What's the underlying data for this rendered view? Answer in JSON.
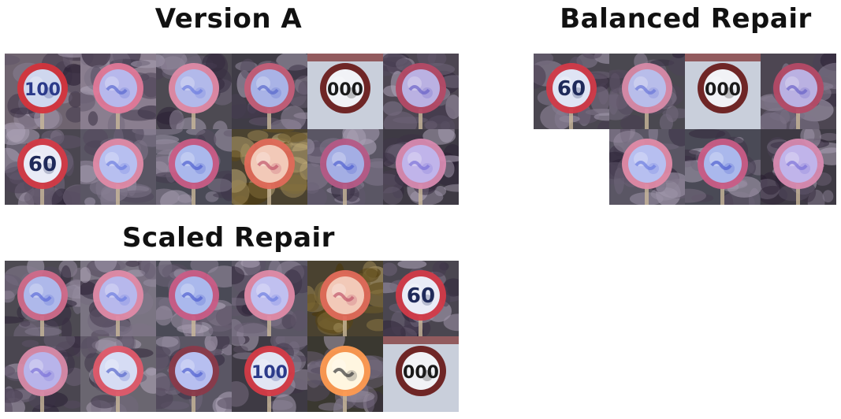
{
  "panels": [
    {
      "title": "Version A",
      "tiles": [
        {
          "bg": "noise",
          "bgColor": "#6f6470",
          "rim": "#d4343c",
          "inner": "#cfd7ee",
          "text": "100",
          "textColor": "#2b3a8a"
        },
        {
          "bg": "noise",
          "bgColor": "#8a7e8f",
          "rim": "#e07898",
          "inner": "#b7b8ec",
          "text": "",
          "textColor": "#5a6ad0"
        },
        {
          "bg": "noise",
          "bgColor": "#4d4a52",
          "rim": "#e08aa6",
          "inner": "#b2b9ea",
          "text": "",
          "textColor": "#6c7de0"
        },
        {
          "bg": "noise",
          "bgColor": "#3f3c46",
          "rim": "#c45e78",
          "inner": "#a9b3e6",
          "text": "",
          "textColor": "#5868cc"
        },
        {
          "bg": "light",
          "bgColor": "#c9cfdb",
          "rim": "#6a1c1c",
          "inner": "#f1f2f6",
          "text": "000",
          "textColor": "#1a1a1a"
        },
        {
          "bg": "noise",
          "bgColor": "#4d4652",
          "rim": "#b44a66",
          "inner": "#bab1e2",
          "text": "",
          "textColor": "#6a62c8"
        },
        {
          "bg": "noise",
          "bgColor": "#4a4650",
          "rim": "#d43a46",
          "inner": "#e9ebf6",
          "text": "60",
          "textColor": "#1f2a5a"
        },
        {
          "bg": "noise",
          "bgColor": "#5a5664",
          "rim": "#e08aa6",
          "inner": "#b7bff0",
          "text": "",
          "textColor": "#6c7de0"
        },
        {
          "bg": "noise",
          "bgColor": "#4a4a56",
          "rim": "#c95c86",
          "inner": "#aab8ec",
          "text": "",
          "textColor": "#4e60d0"
        },
        {
          "bg": "olive",
          "bgColor": "#4a4230",
          "rim": "#e06a5a",
          "inner": "#f2c9b8",
          "text": "",
          "textColor": "#c0556a"
        },
        {
          "bg": "noise",
          "bgColor": "#5a5664",
          "rim": "#b55a86",
          "inner": "#a4aee4",
          "text": "",
          "textColor": "#4e60d0"
        },
        {
          "bg": "noise",
          "bgColor": "#3e3a44",
          "rim": "#d88ab0",
          "inner": "#c0b4ea",
          "text": "",
          "textColor": "#7c72d8"
        }
      ]
    },
    {
      "title": "Balanced Repair",
      "tiles": [
        {
          "bg": "noise",
          "bgColor": "#4a4650",
          "rim": "#d23a48",
          "inner": "#dfe4f4",
          "text": "60",
          "textColor": "#1f2a5a"
        },
        {
          "bg": "noise",
          "bgColor": "#4a4850",
          "rim": "#d88aa8",
          "inner": "#b8bdea",
          "text": "",
          "textColor": "#6a76d8"
        },
        {
          "bg": "light",
          "bgColor": "#c9cfdb",
          "rim": "#6a1c1c",
          "inner": "#f1f2f6",
          "text": "000",
          "textColor": "#1a1a1a"
        },
        {
          "bg": "noise",
          "bgColor": "#4d4652",
          "rim": "#b44a66",
          "inner": "#bab1e2",
          "text": "",
          "textColor": "#6a62c8"
        },
        null,
        {
          "bg": "noise",
          "bgColor": "#5a5664",
          "rim": "#e08aa6",
          "inner": "#b7bff0",
          "text": "",
          "textColor": "#6c7de0"
        },
        {
          "bg": "noise",
          "bgColor": "#4a4a56",
          "rim": "#c95c86",
          "inner": "#aab8ec",
          "text": "",
          "textColor": "#4e60d0"
        },
        {
          "bg": "noise",
          "bgColor": "#3e3a44",
          "rim": "#d88ab0",
          "inner": "#c0b4ea",
          "text": "",
          "textColor": "#7c72d8"
        }
      ]
    },
    {
      "title": "Scaled Repair",
      "tiles": [
        {
          "bg": "noise",
          "bgColor": "#4d4a52",
          "rim": "#d06a8a",
          "inner": "#aeb8ea",
          "text": "",
          "textColor": "#5c6cd8"
        },
        {
          "bg": "noise",
          "bgColor": "#7a7482",
          "rim": "#e08aa6",
          "inner": "#b7b8ec",
          "text": "",
          "textColor": "#6c7de0"
        },
        {
          "bg": "noise",
          "bgColor": "#4a4a56",
          "rim": "#c95c86",
          "inner": "#aab8ec",
          "text": "",
          "textColor": "#4e60d0"
        },
        {
          "bg": "noise",
          "bgColor": "#5a5664",
          "rim": "#e08aa6",
          "inner": "#c0c0f0",
          "text": "",
          "textColor": "#6c7de0"
        },
        {
          "bg": "olive",
          "bgColor": "#4a4230",
          "rim": "#e06a5a",
          "inner": "#f2c9b8",
          "text": "",
          "textColor": "#c0556a"
        },
        {
          "bg": "noise",
          "bgColor": "#4a4650",
          "rim": "#d23a48",
          "inner": "#e9ebf6",
          "text": "60",
          "textColor": "#1f2a5a"
        },
        {
          "bg": "noise",
          "bgColor": "#4a4650",
          "rim": "#d88aa8",
          "inner": "#b8b4ea",
          "text": "",
          "textColor": "#7c72d8"
        },
        {
          "bg": "noise",
          "bgColor": "#6a6670",
          "rim": "#e05a6a",
          "inner": "#d6dcf4",
          "text": "",
          "textColor": "#5868cc"
        },
        {
          "bg": "noise",
          "bgColor": "#5a5664",
          "rim": "#8a3a4a",
          "inner": "#b7bff0",
          "text": "",
          "textColor": "#4e60d0"
        },
        {
          "bg": "noise",
          "bgColor": "#3e3a44",
          "rim": "#d43a46",
          "inner": "#e1e5f4",
          "text": "100",
          "textColor": "#2b3a8a"
        },
        {
          "bg": "noise",
          "bgColor": "#3a3830",
          "rim": "#ff9a50",
          "inner": "#fff6e0",
          "text": "",
          "textColor": "#3a3a3a"
        },
        {
          "bg": "light",
          "bgColor": "#c9cfdb",
          "rim": "#6a1c1c",
          "inner": "#f1f2f6",
          "text": "000",
          "textColor": "#1a1a1a"
        }
      ]
    }
  ]
}
